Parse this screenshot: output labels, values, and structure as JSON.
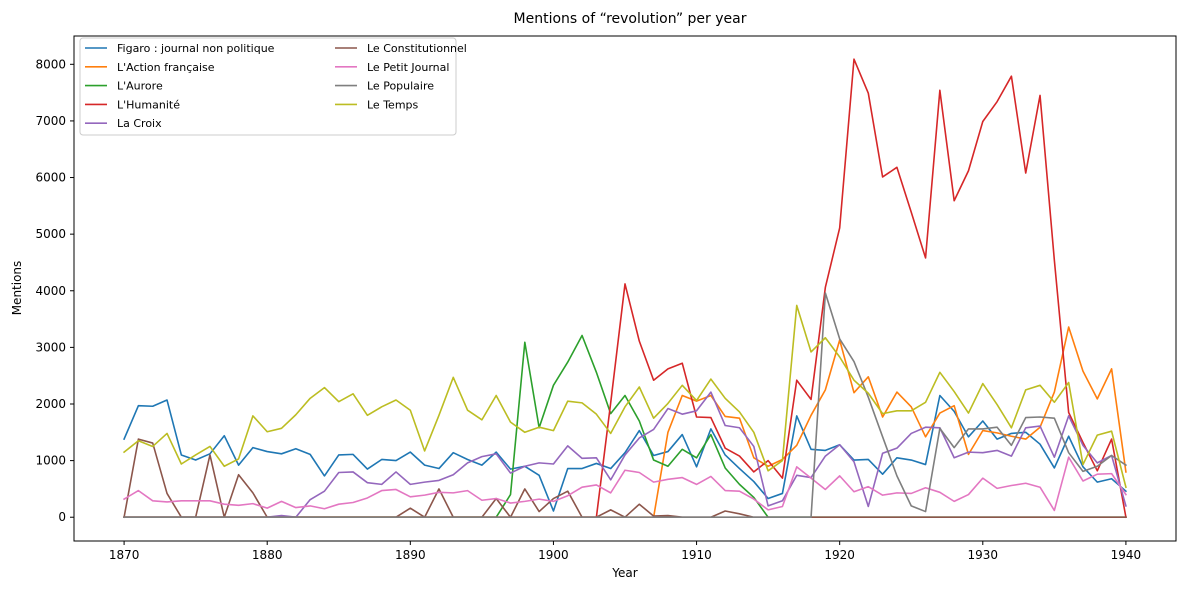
{
  "chart_data": {
    "type": "line",
    "title": "Mentions of “revolution” per year",
    "xlabel": "Year",
    "ylabel": "Mentions",
    "xlim": [
      1866.5,
      1943.5
    ],
    "ylim": [
      -420,
      8500
    ],
    "xticks": [
      1870,
      1880,
      1890,
      1900,
      1910,
      1920,
      1930,
      1940
    ],
    "yticks": [
      0,
      1000,
      2000,
      3000,
      4000,
      5000,
      6000,
      7000,
      8000
    ],
    "grid": false,
    "legend_position": "top-left",
    "x": [
      1870,
      1871,
      1872,
      1873,
      1874,
      1875,
      1876,
      1877,
      1878,
      1879,
      1880,
      1881,
      1882,
      1883,
      1884,
      1885,
      1886,
      1887,
      1888,
      1889,
      1890,
      1891,
      1892,
      1893,
      1894,
      1895,
      1896,
      1897,
      1898,
      1899,
      1900,
      1901,
      1902,
      1903,
      1904,
      1905,
      1906,
      1907,
      1908,
      1909,
      1910,
      1911,
      1912,
      1913,
      1914,
      1915,
      1916,
      1917,
      1918,
      1919,
      1920,
      1921,
      1922,
      1923,
      1924,
      1925,
      1926,
      1927,
      1928,
      1929,
      1930,
      1931,
      1932,
      1933,
      1934,
      1935,
      1936,
      1937,
      1938,
      1939,
      1940
    ],
    "series": [
      {
        "name": "Figaro : journal non politique",
        "color": "#1f77b4",
        "values": [
          1380,
          1970,
          1960,
          2070,
          1100,
          1010,
          1120,
          1440,
          920,
          1230,
          1160,
          1120,
          1210,
          1110,
          730,
          1100,
          1110,
          850,
          1020,
          1000,
          1150,
          920,
          860,
          1140,
          1020,
          920,
          1150,
          850,
          900,
          740,
          110,
          860,
          860,
          950,
          860,
          1140,
          1530,
          1090,
          1160,
          1460,
          890,
          1560,
          1100,
          860,
          630,
          330,
          420,
          1790,
          1200,
          1180,
          1280,
          1010,
          1020,
          760,
          1050,
          1010,
          930,
          2150,
          1870,
          1420,
          1700,
          1380,
          1480,
          1500,
          1290,
          870,
          1430,
          890,
          620,
          680,
          460
        ]
      },
      {
        "name": "L'Action française",
        "color": "#ff7f0e",
        "values": [
          0,
          0,
          0,
          0,
          0,
          0,
          0,
          0,
          0,
          0,
          0,
          0,
          0,
          0,
          0,
          0,
          0,
          0,
          0,
          0,
          0,
          0,
          0,
          0,
          0,
          0,
          0,
          0,
          0,
          0,
          0,
          0,
          0,
          0,
          0,
          0,
          0,
          0,
          1500,
          2150,
          2050,
          2150,
          1780,
          1750,
          1050,
          900,
          1020,
          1270,
          1800,
          2250,
          3130,
          2200,
          2480,
          1770,
          2210,
          1950,
          1420,
          1840,
          1970,
          1110,
          1530,
          1490,
          1430,
          1380,
          1590,
          2210,
          3360,
          2580,
          2090,
          2620,
          800
        ]
      },
      {
        "name": "L'Aurore",
        "color": "#2ca02c",
        "values": [
          0,
          0,
          0,
          0,
          0,
          0,
          0,
          0,
          0,
          0,
          0,
          0,
          0,
          0,
          0,
          0,
          0,
          0,
          0,
          0,
          0,
          0,
          0,
          0,
          0,
          0,
          0,
          400,
          3090,
          1580,
          2330,
          2740,
          3210,
          2560,
          1830,
          2150,
          1700,
          1010,
          900,
          1200,
          1050,
          1460,
          870,
          580,
          350,
          0,
          0,
          0,
          0,
          0,
          0,
          0,
          0,
          0,
          0,
          0,
          0,
          0,
          0,
          0,
          0,
          0,
          0,
          0,
          0,
          0,
          0,
          0,
          0,
          0,
          0
        ]
      },
      {
        "name": "L'Humanité",
        "color": "#d62728",
        "values": [
          0,
          0,
          0,
          0,
          0,
          0,
          0,
          0,
          0,
          0,
          0,
          0,
          0,
          0,
          0,
          0,
          0,
          0,
          0,
          0,
          0,
          0,
          0,
          0,
          0,
          0,
          0,
          0,
          0,
          0,
          0,
          0,
          0,
          0,
          2020,
          4120,
          3110,
          2420,
          2620,
          2720,
          1770,
          1760,
          1220,
          1080,
          800,
          1000,
          690,
          2420,
          2080,
          4060,
          5110,
          8090,
          7490,
          6010,
          6180,
          5390,
          4580,
          7540,
          5590,
          6120,
          6990,
          7340,
          7790,
          6080,
          7450,
          4540,
          1850,
          1320,
          820,
          1380,
          0
        ]
      },
      {
        "name": "La Croix",
        "color": "#9467bd",
        "values": [
          0,
          0,
          0,
          0,
          0,
          0,
          0,
          0,
          0,
          0,
          0,
          30,
          0,
          310,
          460,
          790,
          800,
          610,
          580,
          800,
          580,
          620,
          650,
          750,
          960,
          1070,
          1120,
          780,
          900,
          960,
          940,
          1260,
          1040,
          1050,
          660,
          1100,
          1400,
          1550,
          1920,
          1820,
          1880,
          2210,
          1620,
          1580,
          1250,
          200,
          290,
          740,
          700,
          1080,
          1280,
          980,
          190,
          1130,
          1220,
          1480,
          1590,
          1580,
          1050,
          1150,
          1140,
          1180,
          1080,
          1580,
          1610,
          1060,
          1790,
          1270,
          960,
          1090,
          200
        ]
      },
      {
        "name": "Le Constitutionnel",
        "color": "#8c564b",
        "values": [
          0,
          1380,
          1310,
          420,
          0,
          0,
          1100,
          0,
          750,
          430,
          0,
          0,
          0,
          0,
          0,
          0,
          0,
          0,
          0,
          0,
          160,
          0,
          500,
          0,
          0,
          0,
          330,
          0,
          500,
          100,
          330,
          460,
          0,
          0,
          130,
          0,
          230,
          20,
          30,
          0,
          0,
          0,
          110,
          60,
          0,
          0,
          0,
          0,
          0,
          0,
          0,
          0,
          0,
          0,
          0,
          0,
          0,
          0,
          0,
          0,
          0,
          0,
          0,
          0,
          0,
          0,
          0,
          0,
          0,
          0,
          0
        ]
      },
      {
        "name": "Le Petit Journal",
        "color": "#e377c2",
        "values": [
          320,
          470,
          290,
          270,
          290,
          290,
          290,
          230,
          210,
          240,
          160,
          280,
          170,
          200,
          150,
          230,
          260,
          340,
          470,
          490,
          360,
          390,
          440,
          430,
          470,
          300,
          330,
          250,
          280,
          320,
          280,
          380,
          530,
          570,
          430,
          830,
          790,
          620,
          670,
          700,
          580,
          720,
          470,
          460,
          320,
          130,
          190,
          890,
          690,
          490,
          730,
          450,
          540,
          390,
          430,
          420,
          520,
          440,
          280,
          400,
          690,
          510,
          560,
          600,
          530,
          120,
          1060,
          640,
          760,
          770,
          400
        ]
      },
      {
        "name": "Le Populaire",
        "color": "#7f7f7f",
        "values": [
          0,
          0,
          0,
          0,
          0,
          0,
          0,
          0,
          0,
          0,
          0,
          0,
          0,
          0,
          0,
          0,
          0,
          0,
          0,
          0,
          0,
          0,
          0,
          0,
          0,
          0,
          0,
          0,
          0,
          0,
          0,
          0,
          0,
          0,
          0,
          0,
          0,
          0,
          0,
          0,
          0,
          0,
          0,
          0,
          0,
          0,
          0,
          0,
          0,
          3960,
          3150,
          2750,
          2120,
          1420,
          730,
          200,
          100,
          1570,
          1230,
          1560,
          1560,
          1590,
          1270,
          1760,
          1770,
          1750,
          1140,
          810,
          900,
          1090,
          920
        ]
      },
      {
        "name": "Le Temps",
        "color": "#bcbd22",
        "values": [
          1150,
          1350,
          1250,
          1480,
          940,
          1100,
          1250,
          900,
          1030,
          1790,
          1510,
          1570,
          1810,
          2100,
          2290,
          2040,
          2180,
          1800,
          1950,
          2070,
          1890,
          1170,
          1800,
          2470,
          1890,
          1720,
          2150,
          1680,
          1500,
          1590,
          1530,
          2050,
          2020,
          1820,
          1480,
          1950,
          2300,
          1750,
          2010,
          2330,
          2060,
          2440,
          2100,
          1860,
          1500,
          820,
          1000,
          3740,
          2920,
          3170,
          2830,
          2420,
          2190,
          1830,
          1880,
          1880,
          2030,
          2560,
          2220,
          1840,
          2360,
          1990,
          1580,
          2250,
          2330,
          2030,
          2380,
          930,
          1450,
          1520,
          530
        ]
      }
    ]
  }
}
